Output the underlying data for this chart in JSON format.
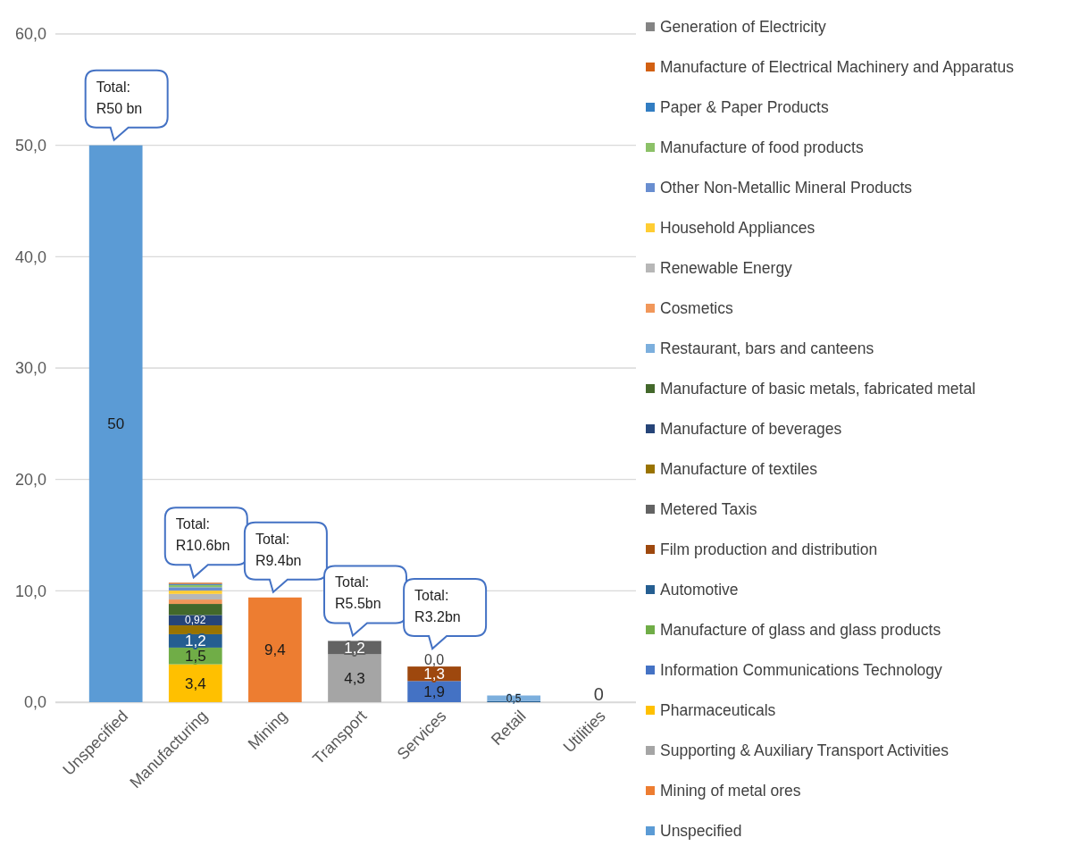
{
  "chart_data": {
    "type": "bar",
    "stacked": true,
    "categories": [
      "Unspecified",
      "Manufacturing",
      "Mining",
      "Transport",
      "Services",
      "Retail",
      "Utilities"
    ],
    "ylim": [
      0,
      60
    ],
    "yticks": [
      {
        "value": 0,
        "label": "0,0"
      },
      {
        "value": 10,
        "label": "10,0"
      },
      {
        "value": 20,
        "label": "20,0"
      },
      {
        "value": 30,
        "label": "30,0"
      },
      {
        "value": 40,
        "label": "40,0"
      },
      {
        "value": 50,
        "label": "50,0"
      },
      {
        "value": 60,
        "label": "60,0"
      }
    ],
    "grid": "y",
    "legend": "right",
    "totals": [
      "Total: R50 bn",
      "Total: R10.6bn",
      "Total: R9.4bn",
      "Total: R5.5bn",
      "Total: R3.2bn",
      null,
      null
    ],
    "series": [
      {
        "name": "Unspecified",
        "color": "#5b9bd5",
        "values": [
          50,
          null,
          null,
          null,
          null,
          null,
          null
        ],
        "value_labels": [
          "50",
          null,
          null,
          null,
          null,
          null,
          null
        ]
      },
      {
        "name": "Mining of metal ores",
        "color": "#ed7d31",
        "values": [
          null,
          null,
          9.4,
          null,
          null,
          null,
          null
        ],
        "value_labels": [
          null,
          null,
          "9,4",
          null,
          null,
          null,
          null
        ]
      },
      {
        "name": "Supporting & Auxiliary Transport Activities",
        "color": "#a5a5a5",
        "values": [
          null,
          null,
          null,
          4.3,
          null,
          null,
          null
        ],
        "value_labels": [
          null,
          null,
          null,
          "4,3",
          null,
          null,
          null
        ]
      },
      {
        "name": "Pharmaceuticals",
        "color": "#ffc000",
        "values": [
          null,
          3.4,
          null,
          null,
          null,
          null,
          null
        ],
        "value_labels": [
          null,
          "3,4",
          null,
          null,
          null,
          null,
          null
        ]
      },
      {
        "name": "Information Communications Technology",
        "color": "#4472c4",
        "values": [
          null,
          null,
          null,
          null,
          1.9,
          null,
          null
        ],
        "value_labels": [
          null,
          null,
          null,
          null,
          "1,9",
          null,
          null
        ]
      },
      {
        "name": "Manufacture of glass and glass products",
        "color": "#70ad47",
        "values": [
          null,
          1.5,
          null,
          null,
          null,
          null,
          null
        ],
        "value_labels": [
          null,
          "1,5",
          null,
          null,
          null,
          null,
          null
        ]
      },
      {
        "name": "Automotive",
        "color": "#255e91",
        "values": [
          null,
          1.2,
          null,
          null,
          null,
          0.1,
          null
        ],
        "value_labels": [
          null,
          "1,2",
          null,
          null,
          null,
          null,
          null
        ]
      },
      {
        "name": "Film production and distribution",
        "color": "#9e480e",
        "values": [
          null,
          null,
          null,
          null,
          1.3,
          null,
          null
        ],
        "value_labels": [
          null,
          null,
          null,
          null,
          "1,3",
          null,
          null
        ]
      },
      {
        "name": "Metered Taxis",
        "color": "#636363",
        "values": [
          null,
          null,
          null,
          1.2,
          null,
          null,
          null
        ],
        "value_labels": [
          null,
          null,
          null,
          "1,2",
          null,
          null,
          null
        ]
      },
      {
        "name": "Manufacture of textiles",
        "color": "#997300",
        "values": [
          null,
          0.8,
          null,
          null,
          null,
          null,
          null
        ],
        "value_labels": [
          null,
          null,
          null,
          null,
          null,
          null,
          null
        ]
      },
      {
        "name": "Manufacture of beverages",
        "color": "#264478",
        "values": [
          null,
          0.92,
          null,
          null,
          null,
          null,
          null
        ],
        "value_labels": [
          null,
          "0,92",
          null,
          null,
          null,
          null,
          null
        ]
      },
      {
        "name": "Manufacture of basic metals, fabricated metal",
        "color": "#43682b",
        "values": [
          null,
          1.0,
          null,
          null,
          null,
          null,
          null
        ],
        "value_labels": [
          null,
          null,
          null,
          null,
          null,
          null,
          null
        ]
      },
      {
        "name": "Restaurant, bars and canteens",
        "color": "#7cafdd",
        "values": [
          null,
          null,
          null,
          null,
          0,
          0.5,
          null
        ],
        "value_labels": [
          null,
          null,
          null,
          null,
          "0,0",
          "0,5",
          null
        ]
      },
      {
        "name": "Cosmetics",
        "color": "#f1975a",
        "values": [
          null,
          0.4,
          null,
          null,
          null,
          null,
          null
        ],
        "value_labels": [
          null,
          null,
          null,
          null,
          null,
          null,
          null
        ]
      },
      {
        "name": "Renewable Energy",
        "color": "#b7b7b7",
        "values": [
          null,
          0.5,
          null,
          null,
          null,
          null,
          null
        ],
        "value_labels": [
          null,
          null,
          null,
          null,
          null,
          null,
          null
        ]
      },
      {
        "name": "Household Appliances",
        "color": "#ffcd33",
        "values": [
          null,
          0.3,
          null,
          null,
          null,
          null,
          null
        ],
        "value_labels": [
          null,
          null,
          null,
          null,
          null,
          null,
          null
        ]
      },
      {
        "name": "Other Non-Metallic Mineral Products",
        "color": "#698ed0",
        "values": [
          null,
          0.3,
          null,
          null,
          null,
          null,
          null
        ],
        "value_labels": [
          null,
          null,
          null,
          null,
          null,
          null,
          null
        ]
      },
      {
        "name": "Manufacture of food products",
        "color": "#8cc168",
        "values": [
          null,
          0.2,
          null,
          null,
          null,
          null,
          null
        ],
        "value_labels": [
          null,
          null,
          null,
          null,
          null,
          null,
          null
        ]
      },
      {
        "name": "Paper & Paper Products",
        "color": "#327dc2",
        "values": [
          null,
          0.1,
          null,
          null,
          null,
          null,
          null
        ],
        "value_labels": [
          null,
          null,
          null,
          null,
          null,
          null,
          null
        ]
      },
      {
        "name": "Manufacture of Electrical Machinery and Apparatus",
        "color": "#d26012",
        "values": [
          null,
          0.1,
          null,
          null,
          null,
          null,
          null
        ],
        "value_labels": [
          null,
          null,
          null,
          null,
          null,
          null,
          null
        ]
      },
      {
        "name": "Generation of Electricity",
        "color": "#848484",
        "values": [
          null,
          null,
          null,
          null,
          null,
          null,
          0
        ],
        "value_labels": [
          null,
          null,
          null,
          null,
          null,
          null,
          "0"
        ]
      }
    ]
  }
}
